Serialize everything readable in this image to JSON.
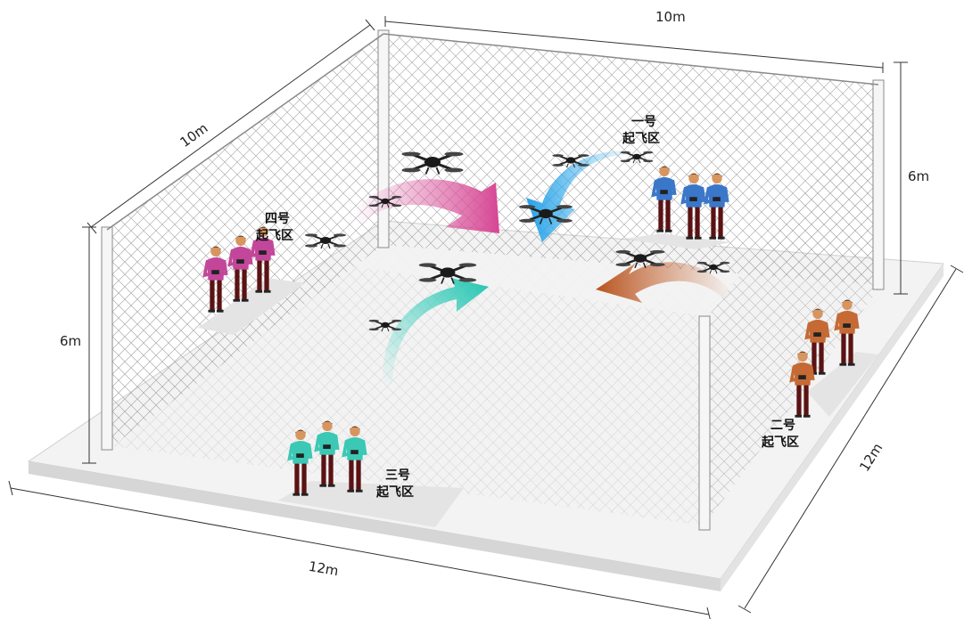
{
  "dimensions": {
    "top_width": "10m",
    "left_depth": "10m",
    "right_height": "6m",
    "left_height": "6m",
    "front_width": "12m",
    "right_depth": "12m"
  },
  "zones": [
    {
      "number": "一号",
      "name": "起飞区",
      "color": "#3b77c9"
    },
    {
      "number": "二号",
      "name": "起飞区",
      "color": "#c56a35"
    },
    {
      "number": "三号",
      "name": "起飞区",
      "color": "#3bc8b4"
    },
    {
      "number": "四号",
      "name": "起飞区",
      "color": "#c2479a"
    }
  ],
  "colors": {
    "net": "#9a9a9a",
    "post": "#f4f4f4",
    "floor": "#f7f7f7",
    "platform_edge": "#d9d9d9",
    "pants": "#5a1212",
    "skin": "#d8955f",
    "hair": "#2b1a12"
  },
  "icons": [
    "drone-icon",
    "pilot-figure",
    "flight-arrow"
  ]
}
